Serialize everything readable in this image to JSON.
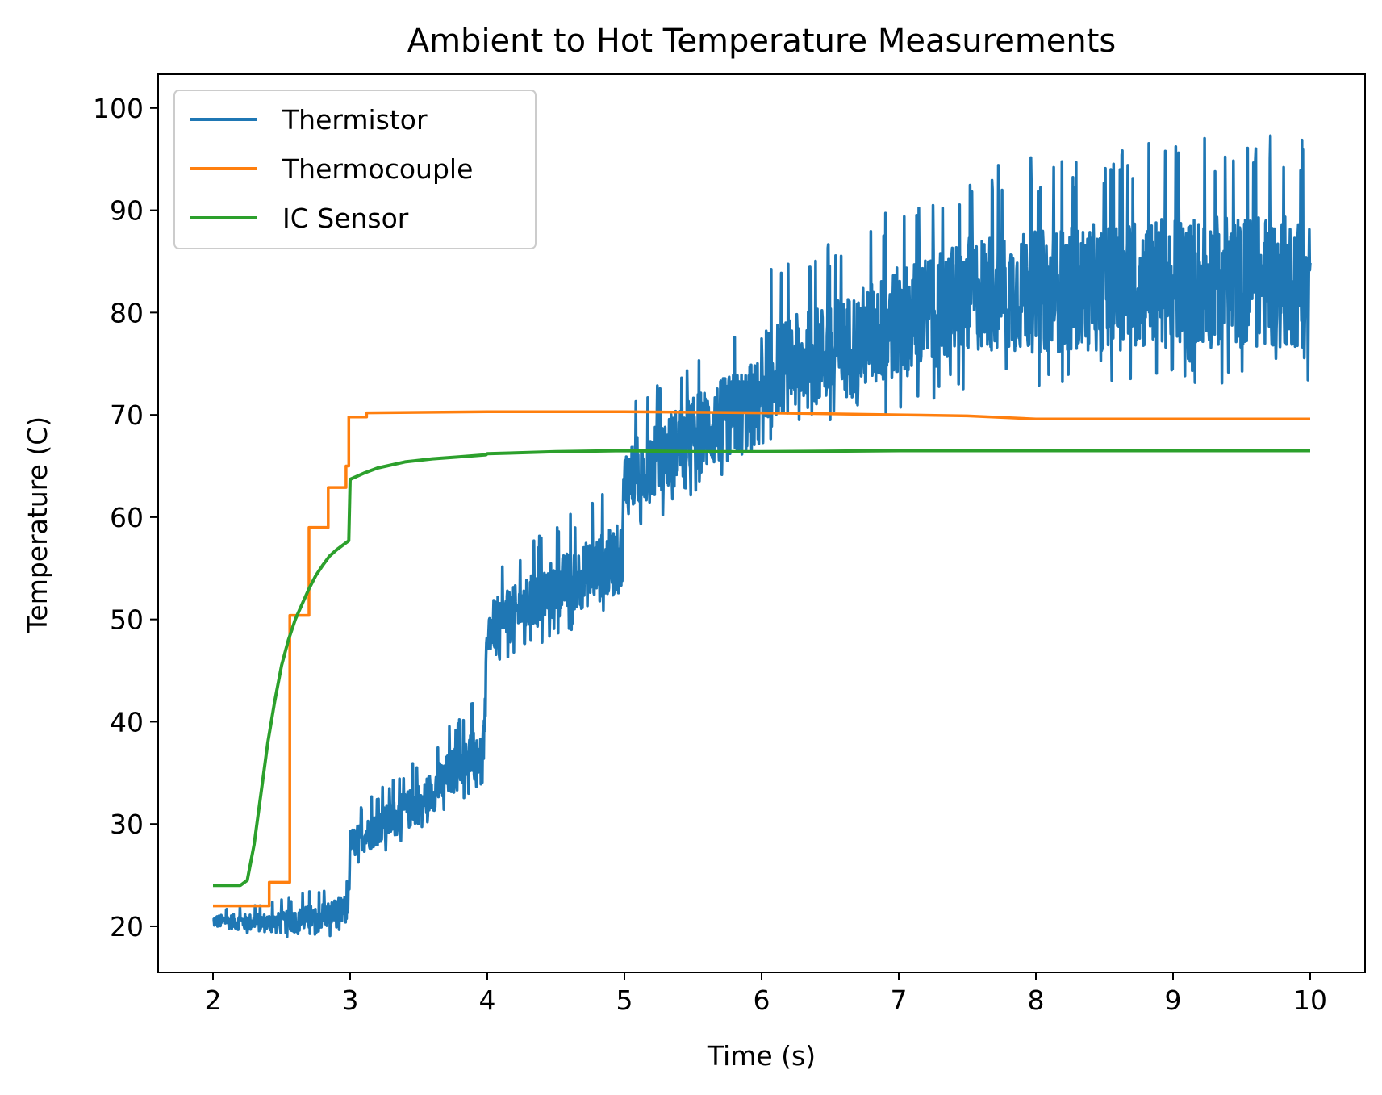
{
  "chart_data": {
    "type": "line",
    "title": "Ambient to Hot Temperature Measurements",
    "xlabel": "Time (s)",
    "ylabel": "Temperature (C)",
    "xlim": [
      1.6,
      10.4
    ],
    "ylim": [
      15.5,
      103.3
    ],
    "xticks": [
      2,
      3,
      4,
      5,
      6,
      7,
      8,
      9,
      10
    ],
    "yticks": [
      20,
      30,
      40,
      50,
      60,
      70,
      80,
      90,
      100
    ],
    "grid": false,
    "legend_position": "top-left",
    "series": [
      {
        "name": "Thermistor",
        "color": "#1f77b4",
        "trend_x": [
          2.0,
          2.5,
          2.98,
          3.0,
          3.5,
          3.98,
          4.0,
          4.5,
          4.98,
          5.0,
          5.5,
          5.98,
          6.0,
          6.6,
          7.0,
          7.6,
          8.0,
          9.0,
          10.0
        ],
        "trend_y": [
          20.5,
          20.3,
          21.5,
          28.0,
          32.0,
          38.0,
          49.0,
          53.0,
          56.0,
          63.5,
          68.0,
          71.0,
          74.0,
          76.5,
          79.0,
          82.0,
          82.0,
          83.0,
          83.0
        ],
        "noise_x": [
          2.0,
          3.0,
          4.0,
          5.0,
          6.0,
          7.0,
          8.0,
          9.0,
          10.0
        ],
        "noise_amplitude": [
          0.6,
          1.5,
          2.5,
          3.5,
          4.5,
          5.5,
          6.0,
          6.5,
          6.5
        ]
      },
      {
        "name": "Thermocouple",
        "color": "#ff7f0e",
        "x": [
          2.0,
          2.41,
          2.41,
          2.56,
          2.56,
          2.7,
          2.7,
          2.84,
          2.84,
          2.97,
          2.97,
          2.99,
          2.99,
          3.12,
          3.12,
          4.0,
          5.0,
          6.0,
          7.0,
          7.5,
          8.0,
          10.0
        ],
        "y": [
          22.0,
          22.0,
          24.3,
          24.3,
          50.4,
          50.4,
          59.0,
          59.0,
          62.9,
          62.9,
          65.0,
          65.0,
          69.8,
          69.8,
          70.2,
          70.3,
          70.3,
          70.2,
          70.0,
          69.9,
          69.6,
          69.6
        ]
      },
      {
        "name": "IC Sensor",
        "color": "#2ca02c",
        "x": [
          2.0,
          2.1,
          2.2,
          2.25,
          2.3,
          2.35,
          2.4,
          2.45,
          2.5,
          2.55,
          2.6,
          2.65,
          2.7,
          2.75,
          2.8,
          2.85,
          2.9,
          2.95,
          2.99,
          3.0,
          3.1,
          3.2,
          3.4,
          3.6,
          3.8,
          3.99,
          4.0,
          4.5,
          5.0,
          5.5,
          6.0,
          7.0,
          8.0,
          9.0,
          10.0
        ],
        "y": [
          24.0,
          24.0,
          24.0,
          24.5,
          28.0,
          33.0,
          38.0,
          42.0,
          45.5,
          48.0,
          50.0,
          51.5,
          53.0,
          54.3,
          55.3,
          56.2,
          56.8,
          57.3,
          57.7,
          63.7,
          64.3,
          64.8,
          65.4,
          65.7,
          65.9,
          66.1,
          66.2,
          66.4,
          66.5,
          66.4,
          66.4,
          66.5,
          66.5,
          66.5,
          66.5
        ]
      }
    ]
  }
}
